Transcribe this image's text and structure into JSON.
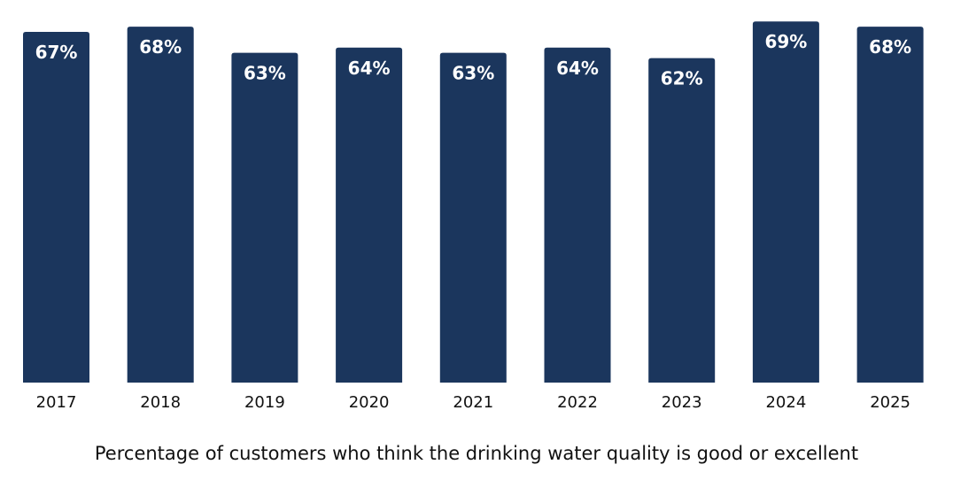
{
  "chart_data": {
    "type": "bar",
    "categories": [
      "2017",
      "2018",
      "2019",
      "2020",
      "2021",
      "2022",
      "2023",
      "2024",
      "2025"
    ],
    "values": [
      67,
      68,
      63,
      64,
      63,
      64,
      62,
      69,
      68
    ],
    "data_labels": [
      "67%",
      "68%",
      "63%",
      "64%",
      "63%",
      "64%",
      "62%",
      "69%",
      "68%"
    ],
    "xlabel": "Percentage of customers who think the drinking water quality is good or excellent",
    "ylim": [
      0,
      69
    ],
    "grid": false,
    "bar_color": "#1b365d",
    "label_color": "#ffffff"
  }
}
